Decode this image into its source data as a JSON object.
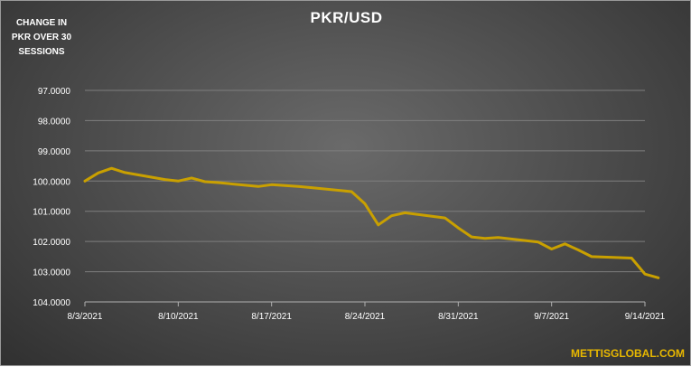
{
  "chart_data": {
    "type": "line",
    "title": "PKR/USD",
    "side_note": "CHANGE IN PKR OVER 30 SESSIONS",
    "watermark": "METTISGLOBAL.COM",
    "y_inverted": true,
    "ylim": [
      97,
      104
    ],
    "y_ticks": [
      "97.0000",
      "98.0000",
      "99.0000",
      "100.0000",
      "101.0000",
      "102.0000",
      "103.0000",
      "104.0000"
    ],
    "x_ticks": [
      "8/3/2021",
      "8/10/2021",
      "8/17/2021",
      "8/24/2021",
      "8/31/2021",
      "9/7/2021",
      "9/14/2021"
    ],
    "line_color": "#c9a000",
    "grid": "horizontal",
    "series": [
      {
        "x": [
          "2021-08-03",
          "2021-08-04",
          "2021-08-05",
          "2021-08-06",
          "2021-08-09",
          "2021-08-10",
          "2021-08-11",
          "2021-08-12",
          "2021-08-13",
          "2021-08-16",
          "2021-08-17",
          "2021-08-18",
          "2021-08-19",
          "2021-08-20",
          "2021-08-23",
          "2021-08-24",
          "2021-08-25",
          "2021-08-26",
          "2021-08-27",
          "2021-08-30",
          "2021-08-31",
          "2021-09-01",
          "2021-09-02",
          "2021-09-03",
          "2021-09-06",
          "2021-09-07",
          "2021-09-08",
          "2021-09-09",
          "2021-09-10",
          "2021-09-13",
          "2021-09-14",
          "2021-09-15"
        ],
        "values": [
          100.0,
          99.73,
          99.58,
          99.72,
          99.95,
          100.0,
          99.9,
          100.02,
          100.05,
          100.18,
          100.12,
          100.15,
          100.18,
          100.22,
          100.35,
          100.75,
          101.45,
          101.15,
          101.05,
          101.22,
          101.55,
          101.85,
          101.9,
          101.87,
          102.02,
          102.25,
          102.08,
          102.28,
          102.5,
          102.55,
          103.08,
          103.2
        ]
      }
    ]
  }
}
